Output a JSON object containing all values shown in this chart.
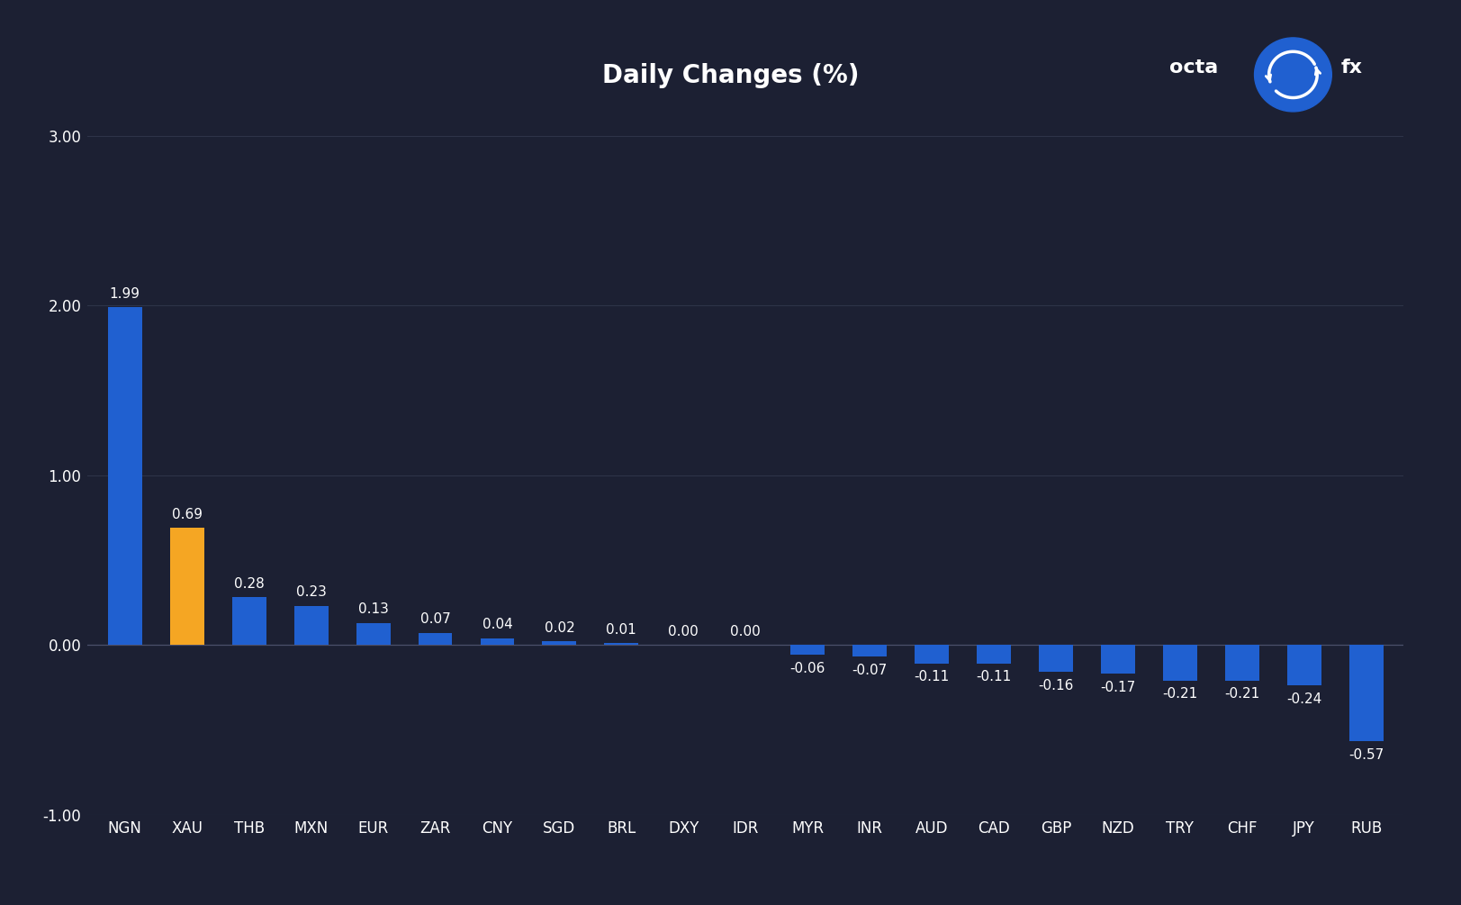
{
  "title": "Daily Changes (%)",
  "categories": [
    "NGN",
    "XAU",
    "THB",
    "MXN",
    "EUR",
    "ZAR",
    "CNY",
    "SGD",
    "BRL",
    "DXY",
    "IDR",
    "MYR",
    "INR",
    "AUD",
    "CAD",
    "GBP",
    "NZD",
    "TRY",
    "CHF",
    "JPY",
    "RUB"
  ],
  "values": [
    1.99,
    0.69,
    0.28,
    0.23,
    0.13,
    0.07,
    0.04,
    0.02,
    0.01,
    0.0,
    0.0,
    -0.06,
    -0.07,
    -0.11,
    -0.11,
    -0.16,
    -0.17,
    -0.21,
    -0.21,
    -0.24,
    -0.57
  ],
  "bar_colors": [
    "#2060d0",
    "#f5a623",
    "#2060d0",
    "#2060d0",
    "#2060d0",
    "#2060d0",
    "#2060d0",
    "#2060d0",
    "#2060d0",
    "#2060d0",
    "#2060d0",
    "#2060d0",
    "#2060d0",
    "#2060d0",
    "#2060d0",
    "#2060d0",
    "#2060d0",
    "#2060d0",
    "#2060d0",
    "#2060d0",
    "#2060d0"
  ],
  "background_color": "#1c2033",
  "text_color": "#ffffff",
  "grid_color": "#2e3348",
  "ylim": [
    -1.0,
    3.0
  ],
  "yticks": [
    -1.0,
    0.0,
    1.0,
    2.0,
    3.0
  ],
  "title_fontsize": 20,
  "tick_fontsize": 12,
  "value_fontsize": 11,
  "bar_width": 0.55,
  "logo_text_octa": "octa",
  "logo_text_fx": "fx",
  "logo_fontsize": 16
}
